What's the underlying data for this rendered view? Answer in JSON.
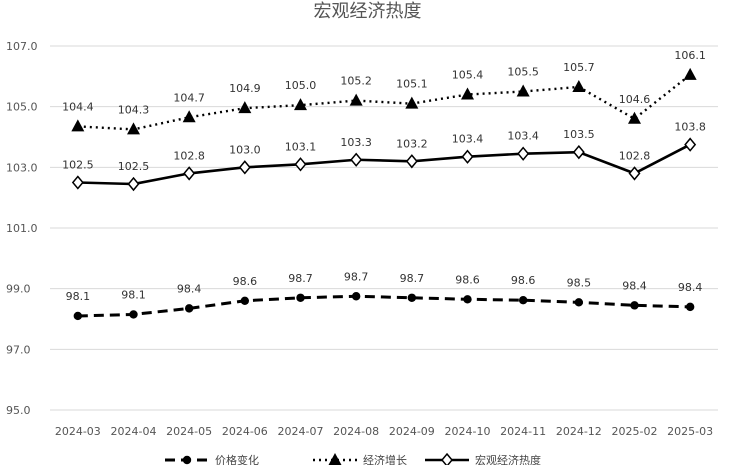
{
  "chart_data": {
    "type": "line",
    "title": "宏观经济热度",
    "categories": [
      "2024-03",
      "2024-04",
      "2024-05",
      "2024-06",
      "2024-07",
      "2024-08",
      "2024-09",
      "2024-10",
      "2024-11",
      "2024-12",
      "2025-02",
      "2025-03"
    ],
    "ylim": [
      95.0,
      107.0
    ],
    "yticks": [
      "95.0",
      "97.0",
      "99.0",
      "101.0",
      "103.0",
      "105.0",
      "107.0"
    ],
    "grid": true,
    "legend_position": "bottom",
    "series": [
      {
        "name": "价格变化",
        "style": "dashed",
        "marker": "circle",
        "color": "#000000",
        "values": [
          98.1,
          98.1,
          98.4,
          98.6,
          98.7,
          98.7,
          98.7,
          98.6,
          98.6,
          98.5,
          98.4,
          98.4
        ],
        "labels": [
          "98.1",
          "98.1",
          "98.4",
          "98.6",
          "98.7",
          "98.7",
          "98.7",
          "98.6",
          "98.6",
          "98.5",
          "98.4",
          "98.4"
        ],
        "plot_values": [
          98.1,
          98.15,
          98.35,
          98.6,
          98.7,
          98.75,
          98.7,
          98.65,
          98.62,
          98.55,
          98.45,
          98.4
        ]
      },
      {
        "name": "经济增长",
        "style": "dotted",
        "marker": "triangle",
        "color": "#000000",
        "values": [
          104.4,
          104.3,
          104.7,
          104.9,
          105.0,
          105.2,
          105.1,
          105.4,
          105.5,
          105.7,
          104.6,
          106.1
        ],
        "labels": [
          "104.4",
          "104.3",
          "104.7",
          "104.9",
          "105.0",
          "105.2",
          "105.1",
          "105.4",
          "105.5",
          "105.7",
          "104.6",
          "106.1"
        ],
        "plot_values": [
          104.35,
          104.25,
          104.65,
          104.95,
          105.05,
          105.2,
          105.1,
          105.4,
          105.5,
          105.65,
          104.6,
          106.05
        ]
      },
      {
        "name": "宏观经济热度",
        "style": "solid",
        "marker": "diamond",
        "color": "#000000",
        "values": [
          102.5,
          102.5,
          102.8,
          103.0,
          103.1,
          103.3,
          103.2,
          103.4,
          103.4,
          103.5,
          102.8,
          103.8
        ],
        "labels": [
          "102.5",
          "102.5",
          "102.8",
          "103.0",
          "103.1",
          "103.3",
          "103.2",
          "103.4",
          "103.4",
          "103.5",
          "102.8",
          "103.8"
        ],
        "plot_values": [
          102.5,
          102.45,
          102.8,
          103.0,
          103.1,
          103.25,
          103.2,
          103.35,
          103.45,
          103.5,
          102.8,
          103.75
        ]
      }
    ]
  }
}
